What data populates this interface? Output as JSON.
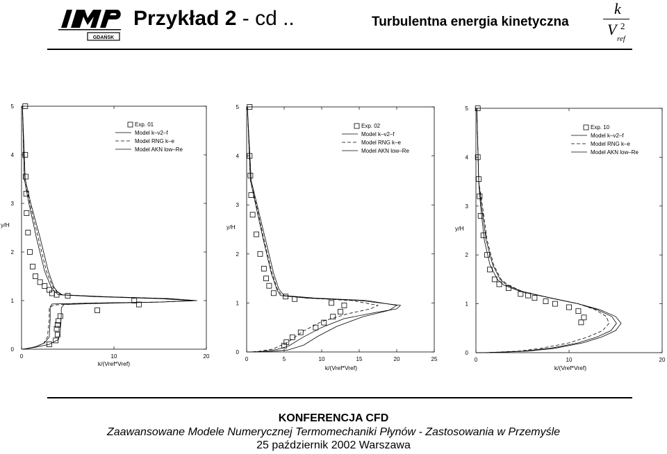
{
  "header": {
    "title_main": "Przykład 2",
    "title_suffix": " - cd ..",
    "subtitle": "Turbulentna energia kinetyczna",
    "formula": {
      "numerator": "k",
      "denominator": "V",
      "exponent": "2",
      "subscript": "ref"
    },
    "logo": {
      "text": "IMP PAN",
      "caption": "GDAŃSK"
    }
  },
  "footer": {
    "conference": "KONFERENCJA CFD",
    "subtitle": "Zaawansowane Modele Numerycznej Termomechaniki Płynów - Zastosowania w Przemyśle",
    "date": "25 październik 2002 Warszawa"
  },
  "colors": {
    "ink": "#000000",
    "background": "#ffffff"
  },
  "chart_data": [
    {
      "type": "scatter",
      "xlabel": "k/(Vref*Vref)",
      "ylabel": "y/H",
      "xlim": [
        0,
        20
      ],
      "ylim": [
        0,
        5
      ],
      "xticks": [
        0,
        10,
        20
      ],
      "yticks": [
        0,
        1,
        2,
        3,
        4,
        5
      ],
      "legend_position": "top-right",
      "legend": [
        "Exp. 01",
        "Model k–v2–f",
        "Model RNG k–e",
        "Model AKN low–Re"
      ],
      "series": [
        {
          "name": "Exp. 01",
          "style": "markers",
          "x": [
            0.4,
            0.4,
            0.45,
            0.5,
            0.55,
            0.7,
            0.9,
            1.2,
            1.5,
            2.0,
            2.5,
            3.0,
            3.3,
            3.8,
            5.0,
            12.2,
            12.7,
            8.2,
            4.2,
            4.0,
            3.9,
            3.8,
            3.9,
            3.7,
            3.0
          ],
          "y": [
            5.0,
            4.0,
            3.55,
            3.2,
            2.8,
            2.4,
            2.0,
            1.7,
            1.5,
            1.38,
            1.3,
            1.22,
            1.15,
            1.12,
            1.1,
            1.0,
            0.92,
            0.8,
            0.68,
            0.58,
            0.5,
            0.42,
            0.3,
            0.18,
            0.1
          ]
        },
        {
          "name": "Model k–v2–f",
          "style": "solid",
          "x": [
            0.1,
            0.3,
            0.8,
            1.6,
            2.5,
            3.2,
            3.6,
            4.0,
            8,
            15,
            18.5,
            15,
            8,
            4.6,
            4.3,
            4.3,
            4.2,
            4.0,
            3.0,
            1.5,
            0.5,
            0.1
          ],
          "y": [
            5.0,
            3.5,
            3.0,
            2.3,
            1.6,
            1.28,
            1.18,
            1.12,
            1.08,
            1.04,
            1.0,
            0.97,
            0.94,
            0.92,
            0.85,
            0.7,
            0.4,
            0.2,
            0.1,
            0.04,
            0.01,
            0.0
          ]
        },
        {
          "name": "Model RNG k–e",
          "style": "dashed",
          "x": [
            0.1,
            0.3,
            0.9,
            1.8,
            2.7,
            3.4,
            3.8,
            4.3,
            9,
            16,
            18.8,
            15,
            8,
            3.5,
            3.0,
            3.0,
            2.8,
            2.4,
            1.5,
            0.6,
            0.1
          ],
          "y": [
            5.0,
            3.5,
            3.0,
            2.3,
            1.6,
            1.28,
            1.18,
            1.12,
            1.08,
            1.04,
            1.0,
            0.97,
            0.95,
            0.91,
            0.85,
            0.6,
            0.25,
            0.12,
            0.05,
            0.01,
            0.0
          ]
        },
        {
          "name": "Model AKN low–Re",
          "style": "solid",
          "x": [
            0.1,
            0.4,
            1.0,
            2.0,
            2.9,
            3.5,
            3.9,
            4.4,
            9,
            16,
            19.0,
            15,
            8,
            3.3,
            3.1,
            3.1,
            3.0,
            2.5,
            1.5,
            0.5,
            0.1
          ],
          "y": [
            5.0,
            3.5,
            3.0,
            2.3,
            1.6,
            1.28,
            1.18,
            1.12,
            1.08,
            1.04,
            1.0,
            0.97,
            0.95,
            0.93,
            0.87,
            0.6,
            0.25,
            0.13,
            0.05,
            0.01,
            0.0
          ]
        }
      ]
    },
    {
      "type": "scatter",
      "xlabel": "k/(Vref*Vref)",
      "ylabel": "y/H",
      "xlim": [
        0,
        25
      ],
      "ylim": [
        0,
        5
      ],
      "xticks": [
        0,
        5,
        10,
        15,
        20,
        25
      ],
      "yticks": [
        0,
        1,
        2,
        3,
        4,
        5
      ],
      "legend_position": "top-right",
      "legend": [
        "Exp. 02",
        "Model k–v2–f",
        "Model RNG k–e",
        "Model AKN low–Re"
      ],
      "series": [
        {
          "name": "Exp. 02",
          "style": "markers",
          "x": [
            0.4,
            0.4,
            0.5,
            0.6,
            0.8,
            1.3,
            1.8,
            2.3,
            2.6,
            3.0,
            3.6,
            5.2,
            6.4,
            11.3,
            13.0,
            12.5,
            11.5,
            10.3,
            9.2,
            7.2,
            6.1,
            5.3,
            5.0
          ],
          "y": [
            5.0,
            4.0,
            3.6,
            3.2,
            2.8,
            2.4,
            2.0,
            1.7,
            1.5,
            1.35,
            1.2,
            1.13,
            1.08,
            1.0,
            0.95,
            0.82,
            0.72,
            0.6,
            0.5,
            0.4,
            0.3,
            0.2,
            0.13
          ]
        },
        {
          "name": "Model k–v2–f",
          "style": "solid",
          "x": [
            0.1,
            0.5,
            1.2,
            2.2,
            3.3,
            4.0,
            4.5,
            8,
            15,
            20.5,
            20.0,
            17.0,
            13.0,
            10.0,
            7.5,
            5.6,
            4.0,
            2.0,
            0.5
          ],
          "y": [
            5.0,
            3.5,
            3.0,
            2.3,
            1.6,
            1.28,
            1.15,
            1.1,
            1.05,
            0.95,
            0.88,
            0.8,
            0.68,
            0.5,
            0.3,
            0.12,
            0.05,
            0.01,
            0.0
          ]
        },
        {
          "name": "Model RNG k–e",
          "style": "dashed",
          "x": [
            0.1,
            0.5,
            1.3,
            2.3,
            3.4,
            4.1,
            4.7,
            8,
            14,
            17.5,
            16.5,
            13.5,
            10.0,
            7.5,
            5.5,
            3.5,
            1.5,
            0.3
          ],
          "y": [
            5.0,
            3.5,
            3.0,
            2.3,
            1.6,
            1.28,
            1.15,
            1.1,
            1.05,
            0.95,
            0.88,
            0.78,
            0.62,
            0.42,
            0.2,
            0.06,
            0.01,
            0.0
          ]
        },
        {
          "name": "Model AKN low–Re",
          "style": "solid",
          "x": [
            0.1,
            0.6,
            1.4,
            2.5,
            3.6,
            4.3,
            5.0,
            9,
            16,
            20.0,
            19.0,
            15.5,
            12.0,
            9.5,
            7.6,
            5.5,
            3.0,
            1.0
          ],
          "y": [
            5.0,
            3.5,
            3.0,
            2.3,
            1.6,
            1.28,
            1.15,
            1.1,
            1.05,
            0.95,
            0.85,
            0.72,
            0.52,
            0.32,
            0.14,
            0.04,
            0.01,
            0.0
          ]
        }
      ]
    },
    {
      "type": "scatter",
      "xlabel": "k/(Vref*Vref)",
      "ylabel": "y/H",
      "xlim": [
        0,
        20
      ],
      "ylim": [
        0,
        5
      ],
      "xticks": [
        0,
        10,
        20
      ],
      "yticks": [
        0,
        1,
        2,
        3,
        4,
        5
      ],
      "legend_position": "top-right",
      "legend": [
        "Exp. 10",
        "Model k–v2–f",
        "Model RNG k–e",
        "Model AKN low–Re"
      ],
      "series": [
        {
          "name": "Exp. 10",
          "style": "markers",
          "x": [
            0.2,
            0.2,
            0.3,
            0.4,
            0.5,
            0.8,
            1.2,
            1.5,
            2.0,
            2.5,
            3.5,
            4.8,
            5.6,
            6.3,
            7.5,
            8.5,
            10.0,
            11.0,
            11.6,
            11.3
          ],
          "y": [
            5.0,
            4.0,
            3.55,
            3.2,
            2.8,
            2.4,
            2.0,
            1.7,
            1.5,
            1.4,
            1.32,
            1.2,
            1.17,
            1.12,
            1.05,
            1.0,
            0.93,
            0.85,
            0.72,
            0.62
          ]
        },
        {
          "name": "Model k–v2–f",
          "style": "solid",
          "x": [
            0.1,
            0.3,
            0.6,
            1.1,
            1.8,
            2.6,
            3.3,
            5,
            8,
            11,
            13,
            14.6,
            15.1,
            14.5,
            13.0,
            11.0,
            8,
            5,
            2.5,
            0.8,
            0.1
          ],
          "y": [
            5.0,
            3.5,
            3.0,
            2.3,
            1.8,
            1.5,
            1.38,
            1.25,
            1.12,
            1.0,
            0.88,
            0.74,
            0.6,
            0.45,
            0.32,
            0.2,
            0.09,
            0.03,
            0.01,
            0.0,
            0.0
          ]
        },
        {
          "name": "Model RNG k–e",
          "style": "dashed",
          "x": [
            0.1,
            0.3,
            0.7,
            1.2,
            1.9,
            2.7,
            3.5,
            5,
            8,
            11,
            12.8,
            14.0,
            14.3,
            13.6,
            12.0,
            10.0,
            7,
            4.5,
            2.2,
            0.6
          ],
          "y": [
            5.0,
            3.5,
            3.0,
            2.3,
            1.8,
            1.5,
            1.38,
            1.25,
            1.12,
            1.0,
            0.88,
            0.74,
            0.6,
            0.45,
            0.32,
            0.2,
            0.09,
            0.03,
            0.01,
            0.0
          ]
        },
        {
          "name": "Model AKN low–Re",
          "style": "solid",
          "x": [
            0.1,
            0.3,
            0.5,
            0.9,
            1.5,
            2.3,
            3.0,
            4.8,
            8,
            11,
            13.3,
            15.0,
            15.6,
            15.0,
            13.5,
            11.5,
            8.5,
            5.5,
            2.8,
            1.0,
            0.1
          ],
          "y": [
            5.0,
            3.5,
            3.0,
            2.3,
            1.8,
            1.5,
            1.38,
            1.25,
            1.12,
            1.0,
            0.88,
            0.74,
            0.6,
            0.45,
            0.32,
            0.2,
            0.09,
            0.03,
            0.01,
            0.0,
            0.0
          ]
        }
      ]
    }
  ]
}
